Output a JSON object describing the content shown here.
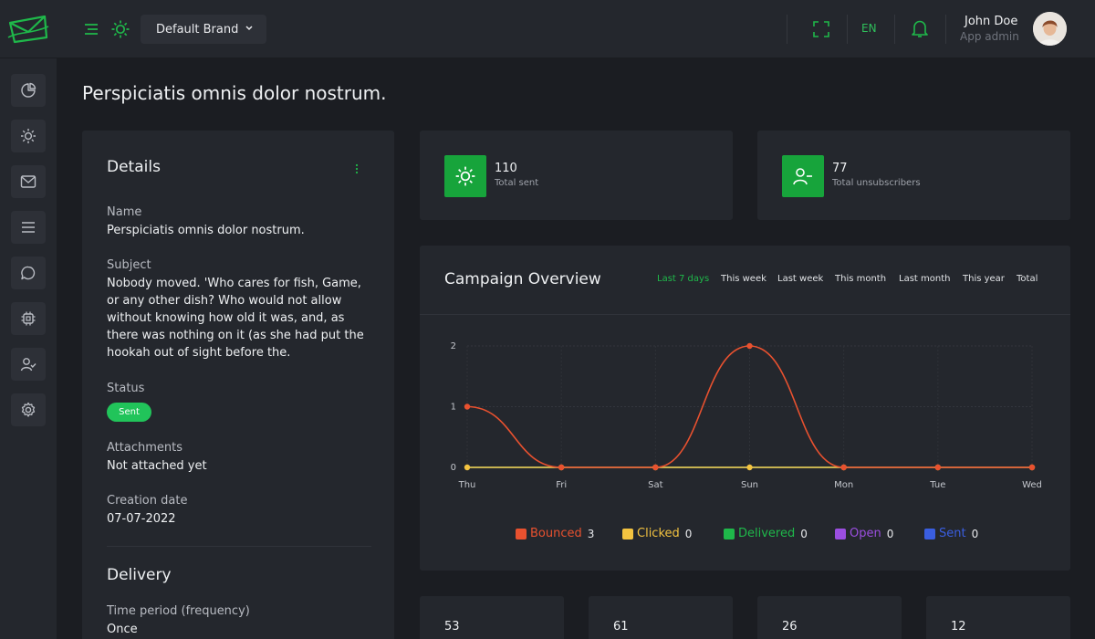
{
  "header": {
    "brand_select": "Default Brand",
    "language": "EN",
    "user": {
      "name": "John Doe",
      "role": "App admin"
    }
  },
  "page": {
    "title": "Perspiciatis omnis dolor nostrum."
  },
  "details": {
    "title": "Details",
    "fields": {
      "name": {
        "label": "Name",
        "value": "Perspiciatis omnis dolor nostrum."
      },
      "subject": {
        "label": "Subject",
        "value": "Nobody moved. 'Who cares for fish, Game, or any other dish? Who would not allow without knowing how old it was, and, as there was nothing on it (as she had put the hookah out of sight before the."
      },
      "status": {
        "label": "Status",
        "value": "Sent"
      },
      "attachments": {
        "label": "Attachments",
        "value": "Not attached yet"
      },
      "creation_date": {
        "label": "Creation date",
        "value": "07-07-2022"
      }
    },
    "delivery": {
      "title": "Delivery",
      "time_period_label": "Time period (frequency)",
      "time_period_value": "Once"
    }
  },
  "stats": {
    "total_sent": {
      "value": "110",
      "label": "Total sent"
    },
    "total_unsubscribers": {
      "value": "77",
      "label": "Total unsubscribers"
    }
  },
  "overview": {
    "title": "Campaign Overview",
    "ranges": [
      "Last 7 days",
      "This week",
      "Last week",
      "This month",
      "Last month",
      "This year",
      "Total"
    ],
    "active_range": "Last 7 days"
  },
  "chart_data": {
    "type": "line",
    "x": [
      "Thu",
      "Fri",
      "Sat",
      "Sun",
      "Mon",
      "Tue",
      "Wed"
    ],
    "ylim": [
      0,
      2
    ],
    "yticks": [
      "0",
      "1",
      "2"
    ],
    "grid": true,
    "legend_position": "bottom",
    "series": [
      {
        "name": "Bounced",
        "count": "3",
        "color": "#e8512f",
        "values": [
          1,
          0,
          0,
          2,
          0,
          0,
          0
        ]
      },
      {
        "name": "Clicked",
        "count": "0",
        "color": "#f3c340",
        "values": [
          0,
          0,
          0,
          0,
          0,
          0,
          0
        ]
      },
      {
        "name": "Delivered",
        "count": "0",
        "color": "#1fb84a",
        "values": [
          0,
          0,
          0,
          0,
          0,
          0,
          0
        ]
      },
      {
        "name": "Open",
        "count": "0",
        "color": "#9b4ee0",
        "values": [
          0,
          0,
          0,
          0,
          0,
          0,
          0
        ]
      },
      {
        "name": "Sent",
        "count": "0",
        "color": "#3a5ee0",
        "values": [
          0,
          0,
          0,
          0,
          0,
          0,
          0
        ]
      }
    ]
  },
  "mini_stats": [
    "53",
    "61",
    "26",
    "12"
  ],
  "colors": {
    "accent": "#1fb84a",
    "background": "#1b1d22",
    "card": "#24272d"
  }
}
